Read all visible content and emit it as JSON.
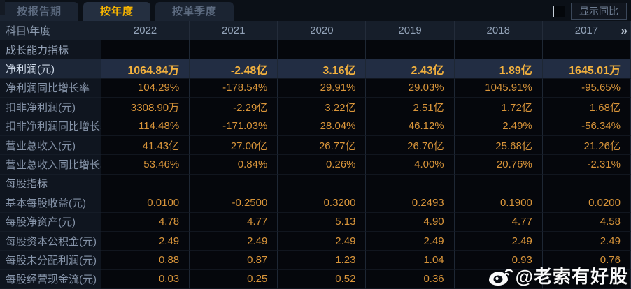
{
  "tabs": [
    {
      "label": "按报告期",
      "active": false
    },
    {
      "label": "按年度",
      "active": true
    },
    {
      "label": "按单季度",
      "active": false
    }
  ],
  "controls": {
    "show_yoy_label": "显示同比",
    "checkbox_checked": false
  },
  "table": {
    "corner_label": "科目\\年度",
    "years": [
      "2022",
      "2021",
      "2020",
      "2019",
      "2018",
      "2017"
    ],
    "more_years_icon": "»",
    "rows": [
      {
        "type": "section",
        "label": "成长能力指标",
        "values": [
          "",
          "",
          "",
          "",
          "",
          ""
        ]
      },
      {
        "type": "highlight",
        "label": "净利润(元)",
        "values": [
          "1064.84万",
          "-2.48亿",
          "3.16亿",
          "2.43亿",
          "1.89亿",
          "1645.01万"
        ]
      },
      {
        "type": "data",
        "label": "净利润同比增长率",
        "values": [
          "104.29%",
          "-178.54%",
          "29.91%",
          "29.03%",
          "1045.91%",
          "-95.65%"
        ]
      },
      {
        "type": "data",
        "label": "扣非净利润(元)",
        "values": [
          "3308.90万",
          "-2.29亿",
          "3.22亿",
          "2.51亿",
          "1.72亿",
          "1.68亿"
        ]
      },
      {
        "type": "data",
        "label": "扣非净利润同比增长率",
        "values": [
          "114.48%",
          "-171.03%",
          "28.04%",
          "46.12%",
          "2.49%",
          "-56.34%"
        ]
      },
      {
        "type": "data",
        "label": "营业总收入(元)",
        "values": [
          "41.43亿",
          "27.00亿",
          "26.77亿",
          "26.70亿",
          "25.68亿",
          "21.26亿"
        ]
      },
      {
        "type": "data",
        "label": "营业总收入同比增长率",
        "values": [
          "53.46%",
          "0.84%",
          "0.26%",
          "4.00%",
          "20.76%",
          "-2.31%"
        ]
      },
      {
        "type": "section",
        "label": "每股指标",
        "values": [
          "",
          "",
          "",
          "",
          "",
          ""
        ]
      },
      {
        "type": "data",
        "label": "基本每股收益(元)",
        "values": [
          "0.0100",
          "-0.2500",
          "0.3200",
          "0.2493",
          "0.1900",
          "0.0200"
        ]
      },
      {
        "type": "data",
        "label": "每股净资产(元)",
        "values": [
          "4.78",
          "4.77",
          "5.13",
          "4.90",
          "4.77",
          "4.58"
        ]
      },
      {
        "type": "data",
        "label": "每股资本公积金(元)",
        "values": [
          "2.49",
          "2.49",
          "2.49",
          "2.49",
          "2.49",
          "2.49"
        ]
      },
      {
        "type": "data",
        "label": "每股未分配利润(元)",
        "values": [
          "0.88",
          "0.87",
          "1.23",
          "1.04",
          "0.93",
          "0.76"
        ]
      },
      {
        "type": "data",
        "label": "每股经营现金流(元)",
        "values": [
          "0.03",
          "0.25",
          "0.52",
          "0.36",
          "",
          ""
        ]
      }
    ]
  },
  "watermark": {
    "text": "@老索有好股"
  },
  "colors": {
    "accent_gold": "#f7b500",
    "value_gold": "#d9953a",
    "highlight_row_bg": "#222d43",
    "header_bg": "#161e2a",
    "label_text": "#8694a9"
  }
}
